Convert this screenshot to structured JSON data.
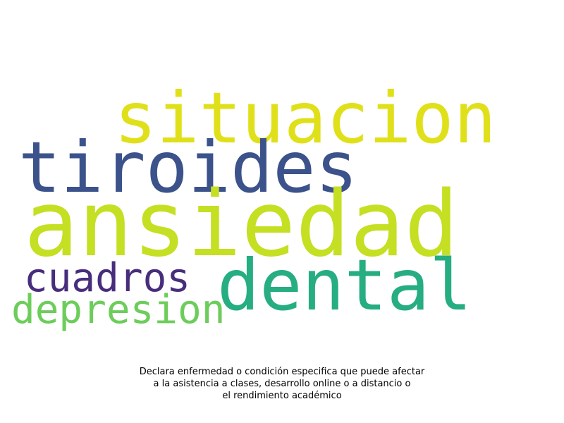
{
  "word_cloud": {
    "words": [
      {
        "id": "situacion",
        "text": "situacion",
        "color": "#e0e01a"
      },
      {
        "id": "tiroides",
        "text": "tiroides",
        "color": "#3b528b"
      },
      {
        "id": "ansiedad",
        "text": "ansiedad",
        "color": "#c5df22"
      },
      {
        "id": "cuadros",
        "text": "cuadros",
        "color": "#472d7b"
      },
      {
        "id": "dental",
        "text": "dental",
        "color": "#26ad81"
      },
      {
        "id": "depresion",
        "text": "depresion",
        "color": "#6ccd5a"
      }
    ]
  },
  "caption": {
    "line1": "Declara enfermedad o condición especifica que puede afectar",
    "line2": "a la asistencia a clases, desarrollo online o a distancio o",
    "line3": "el rendimiento académico"
  }
}
